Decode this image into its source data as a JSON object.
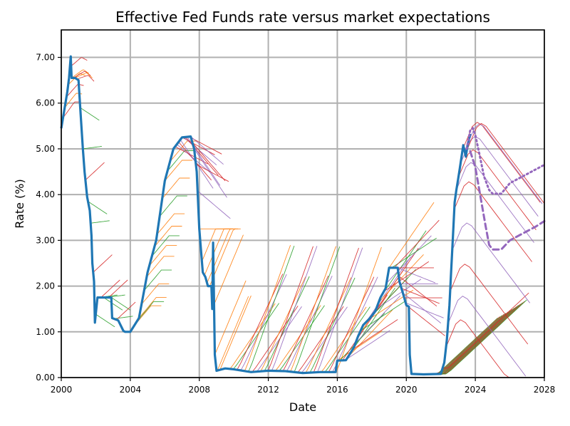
{
  "chart_data": {
    "type": "line",
    "title": "Effective Fed Funds rate versus market expectations",
    "xlabel": "Date",
    "ylabel": "Rate (%)",
    "xlim": [
      2000,
      2028
    ],
    "ylim": [
      0,
      7.6
    ],
    "grid": true,
    "x_ticks": [
      "2000",
      "2004",
      "2008",
      "2012",
      "2016",
      "2020",
      "2024",
      "2028"
    ],
    "y_ticks": [
      "0.00",
      "1.00",
      "2.00",
      "3.00",
      "4.00",
      "5.00",
      "6.00",
      "7.00"
    ],
    "colors": {
      "effective": "#1f77b4",
      "projection_palette": [
        "#ff7f0e",
        "#2ca02c",
        "#d62728",
        "#9467bd"
      ]
    },
    "series": [
      {
        "role": "effective-rate",
        "x": [
          2000.0,
          2000.2,
          2000.35,
          2000.45,
          2000.55,
          2000.6,
          2000.8,
          2001.0,
          2001.1,
          2001.25,
          2001.35,
          2001.5,
          2001.65,
          2001.75,
          2001.8,
          2001.9,
          2001.95,
          2002.1,
          2002.5,
          2002.9,
          2002.95,
          2003.3,
          2003.6,
          2003.7,
          2004.0,
          2004.5,
          2005.0,
          2005.5,
          2006.0,
          2006.5,
          2007.0,
          2007.5,
          2007.7,
          2007.85,
          2008.0,
          2008.2,
          2008.35,
          2008.5,
          2008.6,
          2008.7,
          2008.75,
          2008.8,
          2008.9,
          2009.0,
          2009.5,
          2010.0,
          2011.0,
          2012.0,
          2013.0,
          2014.0,
          2015.0,
          2015.9,
          2016.0,
          2016.5,
          2016.95,
          2017.2,
          2017.5,
          2017.9,
          2018.2,
          2018.5,
          2018.8,
          2019.0,
          2019.5,
          2019.6,
          2019.8,
          2020.0,
          2020.15,
          2020.2,
          2020.3,
          2021.0,
          2022.0,
          2022.2,
          2022.35,
          2022.5,
          2022.6,
          2022.7,
          2022.8,
          2022.9,
          2023.0,
          2023.1,
          2023.2,
          2023.3,
          2023.45,
          2023.55,
          2023.7
        ],
        "values": [
          5.45,
          5.9,
          6.25,
          6.55,
          7.02,
          6.55,
          6.55,
          6.5,
          5.9,
          5.0,
          4.5,
          3.95,
          3.65,
          3.1,
          2.5,
          2.1,
          1.2,
          1.75,
          1.75,
          1.75,
          1.3,
          1.25,
          1.02,
          1.0,
          1.0,
          1.3,
          2.3,
          3.0,
          4.3,
          5.0,
          5.25,
          5.27,
          5.0,
          4.5,
          3.25,
          2.3,
          2.2,
          2.0,
          2.0,
          2.0,
          1.5,
          2.95,
          0.5,
          0.15,
          0.2,
          0.18,
          0.12,
          0.15,
          0.14,
          0.1,
          0.12,
          0.12,
          0.37,
          0.38,
          0.65,
          0.9,
          1.15,
          1.3,
          1.45,
          1.75,
          1.95,
          2.4,
          2.4,
          2.1,
          1.85,
          1.58,
          1.55,
          0.5,
          0.08,
          0.07,
          0.08,
          0.33,
          0.83,
          1.58,
          2.33,
          3.08,
          3.83,
          4.1,
          4.33,
          4.57,
          4.83,
          5.08,
          4.83,
          5.08,
          5.33
        ]
      },
      {
        "role": "expectation-dotted",
        "x": [
          2023.5,
          2023.7,
          2023.85,
          2024.0,
          2024.2,
          2024.5,
          2024.8,
          2025.0,
          2025.5,
          2026.0,
          2026.5,
          2027.0,
          2027.5,
          2028.0
        ],
        "values": [
          5.0,
          5.4,
          5.45,
          5.3,
          4.95,
          4.4,
          4.1,
          4.02,
          4.02,
          4.25,
          4.35,
          4.45,
          4.55,
          4.65
        ]
      },
      {
        "role": "expectation-dashed",
        "x": [
          2023.7,
          2024.0,
          2024.3,
          2024.6,
          2024.8,
          2025.0,
          2025.5,
          2026.0,
          2026.5,
          2027.0,
          2027.5,
          2028.0
        ],
        "values": [
          4.95,
          4.6,
          3.95,
          3.3,
          2.9,
          2.8,
          2.8,
          3.0,
          3.1,
          3.2,
          3.3,
          3.42
        ]
      }
    ]
  }
}
